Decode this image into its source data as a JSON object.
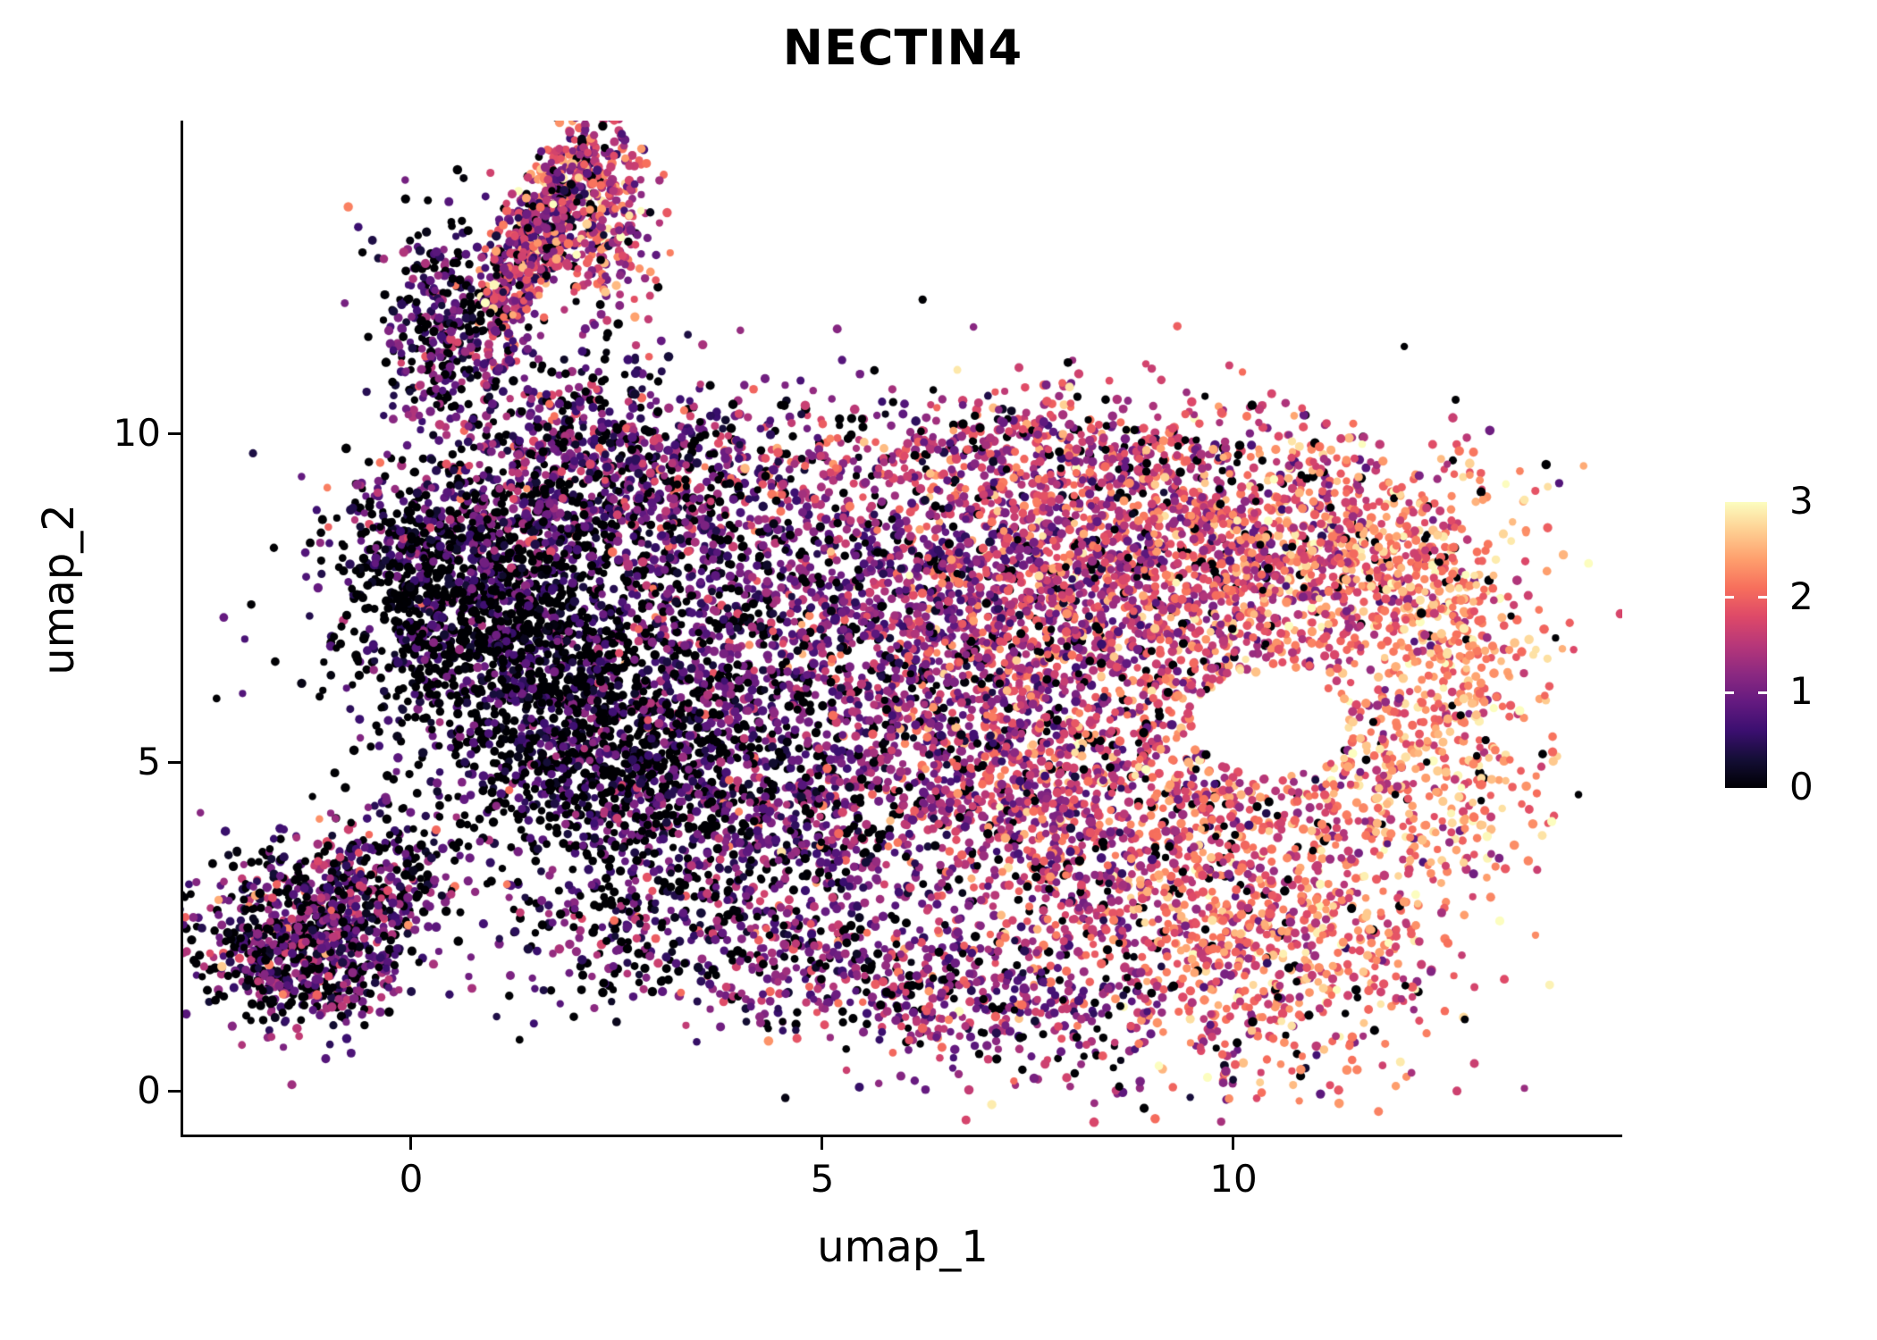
{
  "title": "NECTIN4",
  "colorbar": {
    "min": 0,
    "max": 3,
    "ticks": [
      "3",
      "2",
      "1",
      "0"
    ]
  },
  "chart_data": {
    "type": "scatter",
    "subtype": "umap-feature-plot",
    "title": "NECTIN4",
    "xlabel": "umap_1",
    "ylabel": "umap_2",
    "xticks": [
      "0",
      "5",
      "10"
    ],
    "yticks": [
      "10",
      "5",
      "0"
    ],
    "xlim": [
      -2.77,
      14.73
    ],
    "ylim": [
      -0.65,
      14.78
    ],
    "grid": false,
    "background": "#ffffff",
    "legend": {
      "position": "right",
      "min": 0,
      "max": 3,
      "ticks_top_to_bottom": [
        3,
        2,
        1,
        0
      ]
    },
    "color_scale": {
      "name": "magma",
      "stops": [
        {
          "t": 0.0,
          "c": "#000004"
        },
        {
          "t": 0.1,
          "c": "#140e36"
        },
        {
          "t": 0.2,
          "c": "#3b0f70"
        },
        {
          "t": 0.3,
          "c": "#641a80"
        },
        {
          "t": 0.4,
          "c": "#8c2981"
        },
        {
          "t": 0.5,
          "c": "#b73779"
        },
        {
          "t": 0.6,
          "c": "#de4968"
        },
        {
          "t": 0.7,
          "c": "#f76f5c"
        },
        {
          "t": 0.8,
          "c": "#fe9f6d"
        },
        {
          "t": 0.9,
          "c": "#fecf92"
        },
        {
          "t": 1.0,
          "c": "#fcfdbf"
        }
      ]
    },
    "point_radius": 4.6,
    "seed": 42,
    "holes": [
      {
        "cx": 10.45,
        "cy": 5.6,
        "rx": 0.95,
        "ry": 0.8
      }
    ],
    "clusters": [
      {
        "name": "top-arm-core",
        "cx": 1.5,
        "cy": 12.9,
        "sx": 0.95,
        "sy": 0.24,
        "rot": 69,
        "n": 600,
        "p0": 0.1,
        "mean": 1.35,
        "sd": 0.65
      },
      {
        "name": "top-arm-tip",
        "cx": 2.1,
        "cy": 13.9,
        "sx": 0.45,
        "sy": 0.3,
        "rot": 30,
        "n": 140,
        "p0": 0.06,
        "mean": 1.7,
        "sd": 0.6
      },
      {
        "name": "top-arm-right",
        "cx": 2.4,
        "cy": 13.0,
        "sx": 0.28,
        "sy": 0.55,
        "rot": 0,
        "n": 170,
        "p0": 0.08,
        "mean": 1.6,
        "sd": 0.6
      },
      {
        "name": "top-offshoot-dark",
        "cx": 0.35,
        "cy": 11.6,
        "sx": 0.38,
        "sy": 0.8,
        "rot": 0,
        "n": 320,
        "p0": 0.3,
        "mean": 0.8,
        "sd": 0.45
      },
      {
        "name": "arm-base-bridge",
        "cx": 1.6,
        "cy": 10.4,
        "sx": 0.75,
        "sy": 0.6,
        "rot": 0,
        "n": 220,
        "p0": 0.22,
        "mean": 1.0,
        "sd": 0.55
      },
      {
        "name": "left-dark-upper",
        "cx": 0.95,
        "cy": 7.4,
        "sx": 1.0,
        "sy": 0.95,
        "rot": 0,
        "n": 950,
        "p0": 0.6,
        "mean": 0.6,
        "sd": 0.35
      },
      {
        "name": "left-dark-lower",
        "cx": 1.95,
        "cy": 5.9,
        "sx": 1.05,
        "sy": 1.0,
        "rot": 0,
        "n": 950,
        "p0": 0.55,
        "mean": 0.65,
        "sd": 0.38
      },
      {
        "name": "left-dark-tail",
        "cx": 2.75,
        "cy": 4.6,
        "sx": 0.8,
        "sy": 0.75,
        "rot": 0,
        "n": 450,
        "p0": 0.45,
        "mean": 0.75,
        "sd": 0.4
      },
      {
        "name": "left-purple-band",
        "cx": 1.9,
        "cy": 8.9,
        "sx": 1.15,
        "sy": 0.55,
        "rot": 0,
        "n": 480,
        "p0": 0.28,
        "mean": 0.95,
        "sd": 0.5
      },
      {
        "name": "left-edge-purple",
        "cx": 0.25,
        "cy": 8.2,
        "sx": 0.55,
        "sy": 0.6,
        "rot": 0,
        "n": 260,
        "p0": 0.38,
        "mean": 0.8,
        "sd": 0.45
      },
      {
        "name": "mid-transition-up",
        "cx": 3.9,
        "cy": 7.0,
        "sx": 1.0,
        "sy": 1.5,
        "rot": 0,
        "n": 750,
        "p0": 0.3,
        "mean": 0.95,
        "sd": 0.5
      },
      {
        "name": "mid-transition-lo",
        "cx": 4.6,
        "cy": 4.3,
        "sx": 0.9,
        "sy": 1.0,
        "rot": 0,
        "n": 420,
        "p0": 0.3,
        "mean": 0.9,
        "sd": 0.5
      },
      {
        "name": "mid-upper-sparse",
        "cx": 3.3,
        "cy": 9.5,
        "sx": 1.0,
        "sy": 0.75,
        "rot": 0,
        "n": 380,
        "p0": 0.18,
        "mean": 1.1,
        "sd": 0.55
      },
      {
        "name": "main-left",
        "cx": 6.3,
        "cy": 7.2,
        "sx": 1.15,
        "sy": 1.5,
        "rot": 0,
        "n": 950,
        "p0": 0.12,
        "mean": 1.25,
        "sd": 0.55,
        "xg": 0.08
      },
      {
        "name": "main-center",
        "cx": 8.3,
        "cy": 7.5,
        "sx": 1.3,
        "sy": 1.2,
        "rot": 0,
        "n": 1000,
        "p0": 0.08,
        "mean": 1.6,
        "sd": 0.55,
        "xg": 0.08
      },
      {
        "name": "main-top-right",
        "cx": 10.2,
        "cy": 8.4,
        "sx": 1.35,
        "sy": 0.85,
        "rot": 0,
        "n": 800,
        "p0": 0.07,
        "mean": 1.8,
        "sd": 0.5,
        "xg": 0.1
      },
      {
        "name": "main-top-band",
        "cx": 7.8,
        "cy": 9.7,
        "sx": 1.7,
        "sy": 0.5,
        "rot": 0,
        "n": 480,
        "p0": 0.1,
        "mean": 1.5,
        "sd": 0.55
      },
      {
        "name": "main-lower-left",
        "cx": 7.0,
        "cy": 4.7,
        "sx": 1.25,
        "sy": 1.3,
        "rot": 0,
        "n": 820,
        "p0": 0.12,
        "mean": 1.35,
        "sd": 0.55,
        "xg": 0.08
      },
      {
        "name": "main-lower-right",
        "cx": 9.1,
        "cy": 3.3,
        "sx": 1.3,
        "sy": 1.15,
        "rot": 0,
        "n": 800,
        "p0": 0.08,
        "mean": 1.7,
        "sd": 0.55,
        "xg": 0.1
      },
      {
        "name": "main-bottom-right",
        "cx": 10.8,
        "cy": 2.0,
        "sx": 1.0,
        "sy": 0.9,
        "rot": 0,
        "n": 430,
        "p0": 0.06,
        "mean": 2.0,
        "sd": 0.5
      },
      {
        "name": "ring-around-hole",
        "cx": 10.45,
        "cy": 5.7,
        "sx": 1.5,
        "sy": 1.3,
        "rot": 0,
        "n": 520,
        "p0": 0.08,
        "mean": 1.9,
        "sd": 0.5
      },
      {
        "name": "right-rim-top",
        "cx": 11.9,
        "cy": 8.2,
        "sx": 0.75,
        "sy": 0.7,
        "rot": 0,
        "n": 260,
        "p0": 0.05,
        "mean": 2.2,
        "sd": 0.45
      },
      {
        "name": "right-rim-mid",
        "cx": 12.65,
        "cy": 6.4,
        "sx": 0.5,
        "sy": 0.95,
        "rot": 0,
        "n": 220,
        "p0": 0.05,
        "mean": 2.35,
        "sd": 0.4
      },
      {
        "name": "right-rim-bottom",
        "cx": 12.2,
        "cy": 4.5,
        "sx": 0.7,
        "sy": 0.75,
        "rot": 0,
        "n": 220,
        "p0": 0.05,
        "mean": 2.25,
        "sd": 0.45
      },
      {
        "name": "bottom-tail",
        "cx": 6.6,
        "cy": 1.4,
        "sx": 1.7,
        "sy": 0.55,
        "rot": -14,
        "n": 520,
        "p0": 0.15,
        "mean": 1.2,
        "sd": 0.55
      },
      {
        "name": "bottom-tail-left",
        "cx": 4.4,
        "cy": 2.6,
        "sx": 1.0,
        "sy": 0.8,
        "rot": 0,
        "n": 240,
        "p0": 0.25,
        "mean": 0.95,
        "sd": 0.5
      },
      {
        "name": "bottom-left-core",
        "cx": -1.55,
        "cy": 2.3,
        "sx": 0.62,
        "sy": 0.6,
        "rot": 0,
        "n": 470,
        "p0": 0.33,
        "mean": 0.95,
        "sd": 0.55
      },
      {
        "name": "bottom-left-right",
        "cx": -0.75,
        "cy": 2.9,
        "sx": 0.55,
        "sy": 0.55,
        "rot": 0,
        "n": 360,
        "p0": 0.3,
        "mean": 1.0,
        "sd": 0.55
      },
      {
        "name": "bottom-left-lower",
        "cx": -1.1,
        "cy": 1.75,
        "sx": 0.55,
        "sy": 0.38,
        "rot": 0,
        "n": 200,
        "p0": 0.33,
        "mean": 0.9,
        "sd": 0.5
      },
      {
        "name": "bridge-sparse",
        "cx": 0.3,
        "cy": 3.6,
        "sx": 0.6,
        "sy": 0.5,
        "rot": 0,
        "n": 100,
        "p0": 0.4,
        "mean": 0.8,
        "sd": 0.5
      },
      {
        "name": "below-dark-sparse",
        "cx": 2.4,
        "cy": 2.4,
        "sx": 0.75,
        "sy": 0.6,
        "rot": 0,
        "n": 170,
        "p0": 0.4,
        "mean": 0.85,
        "sd": 0.5
      },
      {
        "name": "stray-outliers",
        "cx": 6.5,
        "cy": 6.0,
        "sx": 3.4,
        "sy": 2.8,
        "rot": 0,
        "n": 120,
        "p0": 0.3,
        "mean": 1.0,
        "sd": 0.7
      }
    ]
  }
}
